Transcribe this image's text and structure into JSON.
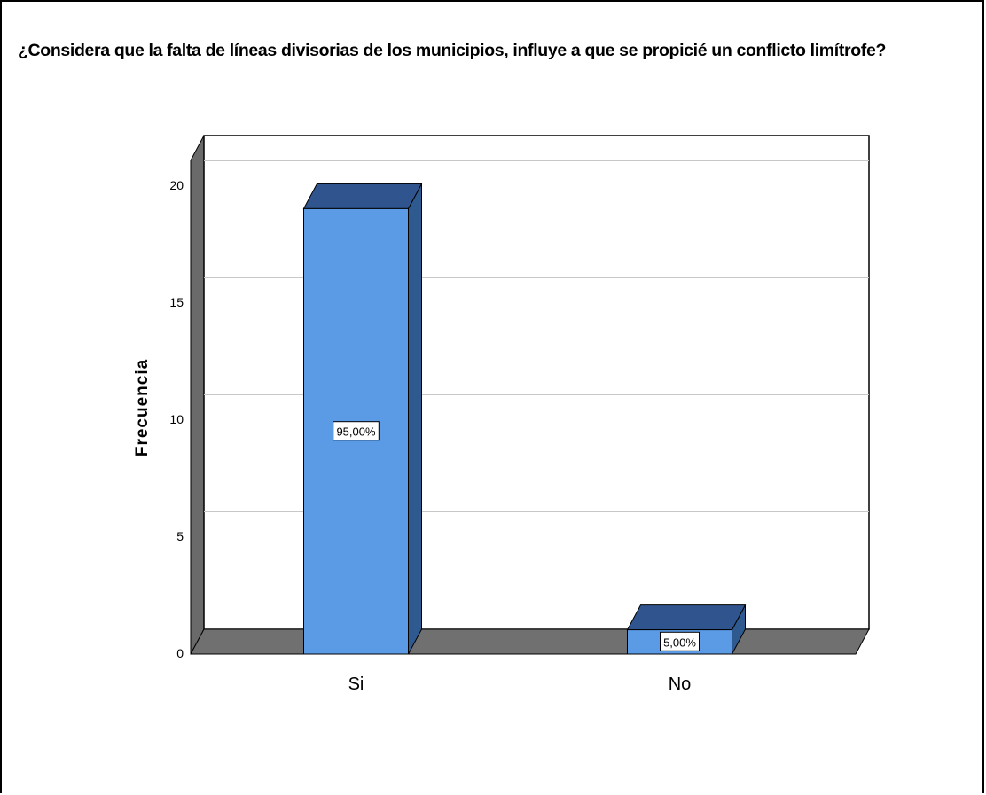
{
  "chart_data": {
    "type": "bar",
    "title": "¿Considera que la falta de líneas divisorias de los municipios, influye a que se propicié un conflicto limítrofe?",
    "xlabel": "",
    "ylabel": "Frecuencia",
    "categories": [
      "Si",
      "No"
    ],
    "values": [
      19,
      1
    ],
    "data_labels": [
      "95,00%",
      "5,00%"
    ],
    "yticks": [
      "0",
      "5",
      "10",
      "15",
      "20"
    ],
    "ylim": [
      0,
      21
    ],
    "grid": true,
    "style": "3d",
    "colors": {
      "bar_front": "#5b9be6",
      "bar_top": "#30558e",
      "bar_side": "#2f5a90",
      "floor": "#707070",
      "wall_side": "#6a6a6a",
      "grid": "#c8c8c8"
    }
  }
}
